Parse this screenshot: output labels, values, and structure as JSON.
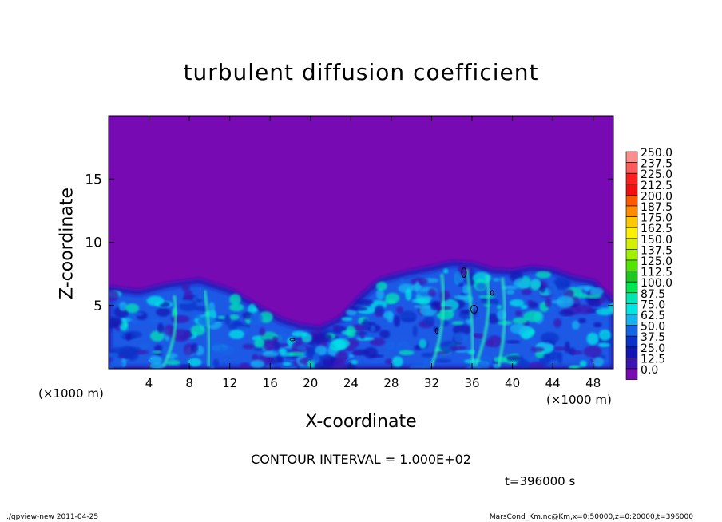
{
  "chart_data": {
    "type": "heatmap",
    "title": "turbulent diffusion coefficient",
    "xlabel": "X-coordinate",
    "ylabel": "Z-coordinate",
    "x_unit_label": "(×1000 m)",
    "x_unit_label_right": "(×1000 m)",
    "xlim": [
      0,
      50
    ],
    "ylim": [
      0,
      20
    ],
    "x_ticks": [
      4,
      8,
      12,
      16,
      20,
      24,
      28,
      32,
      36,
      40,
      44,
      48
    ],
    "y_ticks": [
      5,
      10,
      15
    ],
    "colorbar_levels": [
      "250.0",
      "237.5",
      "225.0",
      "212.5",
      "200.0",
      "187.5",
      "175.0",
      "162.5",
      "150.0",
      "137.5",
      "125.0",
      "112.5",
      "100.0",
      "87.5",
      "75.0",
      "62.5",
      "50.0",
      "37.5",
      "25.0",
      "12.5",
      "0.0"
    ],
    "colorbar_colors": [
      "#ff8c8c",
      "#ff5a5a",
      "#ff2020",
      "#f01010",
      "#ff5a00",
      "#ff8c00",
      "#ffc800",
      "#fff000",
      "#d2f000",
      "#a0f000",
      "#50e600",
      "#1ec81e",
      "#00e650",
      "#00e6b4",
      "#00e6e6",
      "#14b4f0",
      "#1464e6",
      "#0a32c8",
      "#1414b4",
      "#3c14b4",
      "#780ab4"
    ],
    "contour_interval": "CONTOUR INTERVAL = 1.000E+02",
    "time_label": "t=396000 s",
    "footer_left": "./gpview-new   2011-04-25",
    "footer_right": "MarsCond_Km.nc@Km,x=0:50000,z=0:20000,t=396000",
    "surface_profile": [
      [
        0,
        6.3
      ],
      [
        3,
        6.0
      ],
      [
        6,
        6.6
      ],
      [
        9,
        6.9
      ],
      [
        12,
        6.1
      ],
      [
        15,
        4.7
      ],
      [
        17,
        3.8
      ],
      [
        19,
        3.3
      ],
      [
        21,
        3.1
      ],
      [
        23,
        3.9
      ],
      [
        25,
        5.6
      ],
      [
        27,
        7.0
      ],
      [
        30,
        7.6
      ],
      [
        32,
        7.9
      ],
      [
        34,
        8.3
      ],
      [
        36,
        8.2
      ],
      [
        38,
        7.7
      ],
      [
        40,
        7.6
      ],
      [
        42,
        7.9
      ],
      [
        44,
        7.7
      ],
      [
        46,
        7.1
      ],
      [
        48,
        6.8
      ],
      [
        50,
        5.2
      ]
    ]
  }
}
